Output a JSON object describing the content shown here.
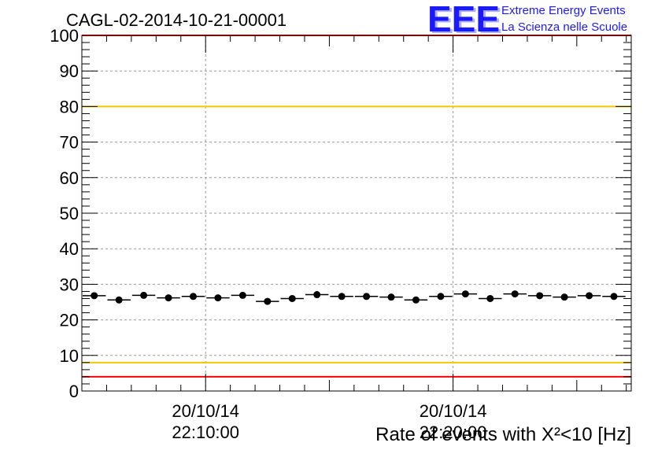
{
  "chart_data": {
    "type": "scatter",
    "title": "CAGL-02-2014-10-21-00001",
    "xlabel": "Rate of events with X²<10 [Hz]",
    "ylabel": "",
    "ylim": [
      0,
      100
    ],
    "yticks": [
      "0",
      "10",
      "20",
      "30",
      "40",
      "50",
      "60",
      "70",
      "80",
      "90",
      "100"
    ],
    "xticks": [
      {
        "date": "20/10/14",
        "time": "22:10:00"
      },
      {
        "date": "20/10/14",
        "time": "22:20:00"
      }
    ],
    "x_unit": "minutes after 22:05:00",
    "x_range": [
      0,
      22.2
    ],
    "grid": true,
    "series": [
      {
        "name": "",
        "x": [
          0.5,
          1.5,
          2.5,
          3.5,
          4.5,
          5.5,
          6.5,
          7.5,
          8.5,
          9.5,
          10.5,
          11.5,
          12.5,
          13.5,
          14.5,
          15.5,
          16.5,
          17.5,
          18.5,
          19.5,
          20.5,
          21.5
        ],
        "values": [
          26.8,
          25.6,
          26.9,
          26.2,
          26.6,
          26.2,
          26.9,
          25.2,
          26.0,
          27.1,
          26.6,
          26.6,
          26.4,
          25.6,
          26.6,
          27.3,
          26.0,
          27.3,
          26.8,
          26.4,
          26.8,
          26.6
        ],
        "color": "#000000"
      }
    ],
    "reference_lines": [
      {
        "value": 100,
        "color": "#ff0000"
      },
      {
        "value": 80,
        "color": "#f0c800"
      },
      {
        "value": 8,
        "color": "#f0c800"
      },
      {
        "value": 4,
        "color": "#ff0000"
      }
    ]
  },
  "logo": {
    "mark": "EEE",
    "line1": "Extreme Energy Events",
    "line2": "La Scienza nelle Scuole",
    "color": "#1a1aff"
  }
}
